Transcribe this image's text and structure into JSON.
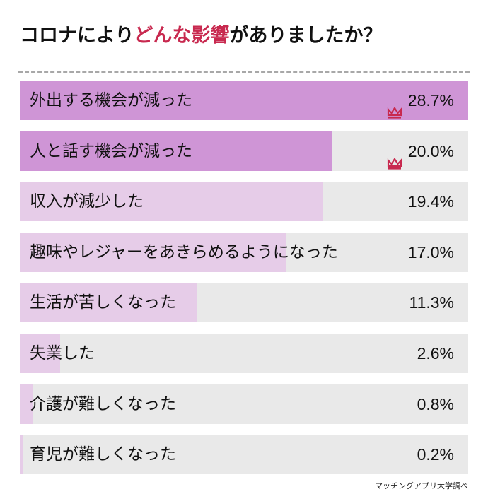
{
  "title": {
    "before": "コロナにより",
    "highlight": "どんな影響",
    "after": "がありましたか？",
    "highlight_color": "#c8294f"
  },
  "source": "マッチングアプリ大学調べ",
  "colors": {
    "top_fill": "#cf95d6",
    "fill": "#e6cce8",
    "track": "#e9e9e9",
    "crown": "#c8294f"
  },
  "rows": [
    {
      "label": "外出する機会が減った",
      "value": "28.7%",
      "crown": true
    },
    {
      "label": "人と話す機会が減った",
      "value": "20.0%",
      "crown": true
    },
    {
      "label": "収入が減少した",
      "value": "19.4%",
      "crown": false
    },
    {
      "label": "趣味やレジャーをあきらめるようになった",
      "value": "17.0%",
      "crown": false
    },
    {
      "label": "生活が苦しくなった",
      "value": "11.3%",
      "crown": false
    },
    {
      "label": "失業した",
      "value": "2.6%",
      "crown": false
    },
    {
      "label": "介護が難しくなった",
      "value": "0.8%",
      "crown": false
    },
    {
      "label": "育児が難しくなった",
      "value": "0.2%",
      "crown": false
    }
  ],
  "chart_data": {
    "type": "bar",
    "orientation": "horizontal",
    "title": "コロナによりどんな影響がありましたか？",
    "categories": [
      "外出する機会が減った",
      "人と話す機会が減った",
      "収入が減少した",
      "趣味やレジャーをあきらめるようになった",
      "生活が苦しくなった",
      "失業した",
      "介護が難しくなった",
      "育児が難しくなった"
    ],
    "values": [
      28.7,
      20.0,
      19.4,
      17.0,
      11.3,
      2.6,
      0.8,
      0.2
    ],
    "unit": "%",
    "xlabel": "",
    "ylabel": "",
    "xlim": [
      0,
      28.7
    ],
    "grid": false,
    "legend": "none",
    "annotations": [
      "top-2 marked with crown icon",
      "マッチングアプリ大学調べ"
    ]
  }
}
